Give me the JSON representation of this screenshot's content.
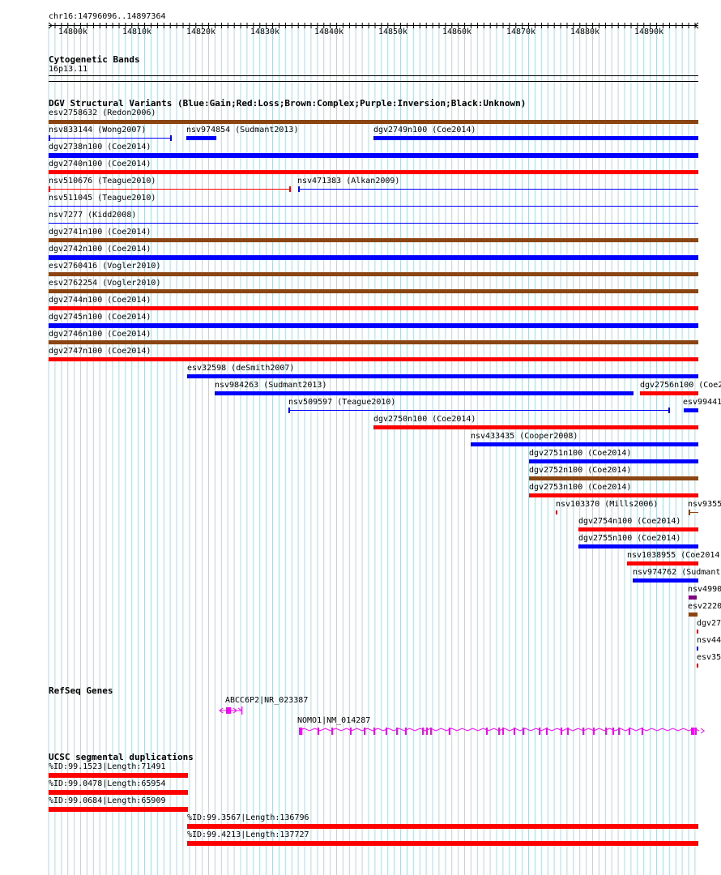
{
  "browser": {
    "position": "chr16:14796096..14897364",
    "ruler_ticks": [
      "14800k",
      "14810k",
      "14820k",
      "14830k",
      "14840k",
      "14850k",
      "14860k",
      "14870k",
      "14880k",
      "14890k"
    ],
    "colors": {
      "gain": "#0000ff",
      "loss": "#ff0000",
      "complex": "#8b4513",
      "inversion": "#800080",
      "unknown": "#000000",
      "gene": "#ff00ff",
      "segdup": "#ff0000",
      "grid": "#aadde6"
    }
  },
  "cytoband": {
    "title": "Cytogenetic Bands",
    "band": "16p13.11"
  },
  "dgv": {
    "title": "DGV Structural Variants (Blue:Gain;Red:Loss;Brown:Complex;Purple:Inversion;Black:Unknown)",
    "variants": [
      {
        "label": "esv2758632 (Redon2006)",
        "color": "complex"
      },
      {
        "label": "nsv833144 (Wong2007)",
        "color": "gain"
      },
      {
        "label": "nsv974854 (Sudmant2013)",
        "color": "gain"
      },
      {
        "label": "dgv2749n100 (Coe2014)",
        "color": "gain"
      },
      {
        "label": "dgv2738n100 (Coe2014)",
        "color": "gain"
      },
      {
        "label": "dgv2740n100 (Coe2014)",
        "color": "loss"
      },
      {
        "label": "nsv510676 (Teague2010)",
        "color": "loss"
      },
      {
        "label": "nsv471383 (Alkan2009)",
        "color": "gain"
      },
      {
        "label": "nsv511045 (Teague2010)",
        "color": "gain"
      },
      {
        "label": "nsv7277 (Kidd2008)",
        "color": "gain"
      },
      {
        "label": "dgv2741n100 (Coe2014)",
        "color": "complex"
      },
      {
        "label": "dgv2742n100 (Coe2014)",
        "color": "gain"
      },
      {
        "label": "esv2760416 (Vogler2010)",
        "color": "complex"
      },
      {
        "label": "esv2762254 (Vogler2010)",
        "color": "complex"
      },
      {
        "label": "dgv2744n100 (Coe2014)",
        "color": "loss"
      },
      {
        "label": "dgv2745n100 (Coe2014)",
        "color": "gain"
      },
      {
        "label": "dgv2746n100 (Coe2014)",
        "color": "complex"
      },
      {
        "label": "dgv2747n100 (Coe2014)",
        "color": "loss"
      },
      {
        "label": "esv32598 (deSmith2007)",
        "color": "gain"
      },
      {
        "label": "nsv984263 (Sudmant2013)",
        "color": "gain"
      },
      {
        "label": "dgv2756n100 (Coe2",
        "color": "loss"
      },
      {
        "label": "nsv509597 (Teague2010)",
        "color": "gain"
      },
      {
        "label": "esv99441",
        "color": "gain"
      },
      {
        "label": "dgv2750n100 (Coe2014)",
        "color": "loss"
      },
      {
        "label": "nsv433435 (Cooper2008)",
        "color": "gain"
      },
      {
        "label": "dgv2751n100 (Coe2014)",
        "color": "gain"
      },
      {
        "label": "dgv2752n100 (Coe2014)",
        "color": "complex"
      },
      {
        "label": "dgv2753n100 (Coe2014)",
        "color": "loss"
      },
      {
        "label": "nsv103370 (Mills2006)",
        "color": "loss"
      },
      {
        "label": "nsv9355",
        "color": "complex"
      },
      {
        "label": "dgv2754n100 (Coe2014)",
        "color": "loss"
      },
      {
        "label": "dgv2755n100 (Coe2014)",
        "color": "gain"
      },
      {
        "label": "nsv1038955 (Coe2014)",
        "color": "loss"
      },
      {
        "label": "nsv974762 (Sudmant2",
        "color": "gain"
      },
      {
        "label": "nsv4990",
        "color": "inversion"
      },
      {
        "label": "esv2220",
        "color": "complex"
      },
      {
        "label": "dgv27",
        "color": "loss"
      },
      {
        "label": "nsv44",
        "color": "gain"
      },
      {
        "label": "esv35",
        "color": "loss"
      }
    ]
  },
  "refseq": {
    "title": "RefSeq Genes",
    "genes": [
      {
        "label": "ABCC6P2|NR_023387"
      },
      {
        "label": "NOMO1|NM_014287"
      }
    ]
  },
  "segdups": {
    "title": "UCSC segmental duplications",
    "items": [
      {
        "label": "%ID:99.1523|Length:71491"
      },
      {
        "label": "%ID:99.0478|Length:65954"
      },
      {
        "label": "%ID:99.0684|Length:65909"
      },
      {
        "label": "%ID:99.3567|Length:136796"
      },
      {
        "label": "%ID:99.4213|Length:137727"
      }
    ]
  }
}
